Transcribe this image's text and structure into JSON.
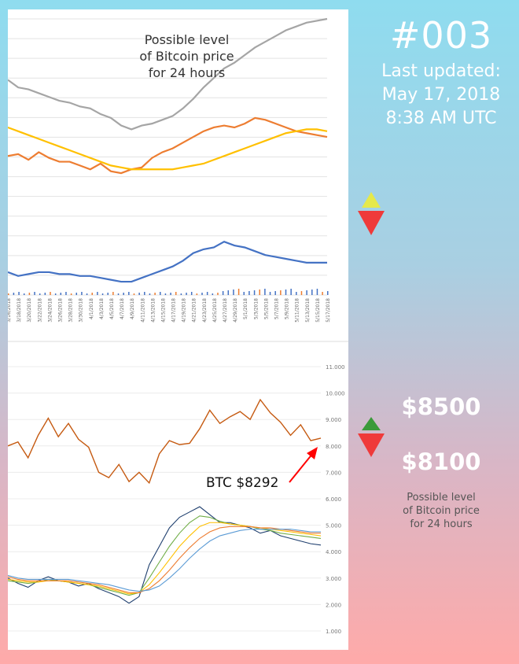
{
  "header": {
    "id_label": "#003",
    "updated_label": "Last updated:",
    "updated_date": "May 17, 2018",
    "updated_time": "8:38 AM UTC"
  },
  "top_chart": {
    "title_lines": [
      "Possible level",
      "of Bitcoin price",
      "for 24 hours"
    ]
  },
  "prediction": {
    "high": "$8500",
    "low": "$8100",
    "caption_lines": [
      "Possible level",
      "of Bitcoin price",
      "for 24 hours"
    ]
  },
  "annotation": {
    "label": "BTC $8292"
  },
  "icons": {
    "top_up": "triangle-up-icon",
    "top_down": "triangle-down-icon",
    "mid_up": "triangle-up-icon",
    "mid_down": "triangle-down-icon",
    "pointer": "arrow-icon"
  },
  "colors": {
    "grey_series": "#a5a5a5",
    "orange_series": "#ed7d31",
    "yellow_series": "#ffc000",
    "blue_series": "#4472c4",
    "btc_line": "#c55a11",
    "arrow": "#ff0000",
    "up_yellow": "#e5e94a",
    "up_green": "#3a9a3a",
    "down_red": "#ef3a3a"
  },
  "chart_data": [
    {
      "type": "line",
      "title": "Possible level of Bitcoin price for 24 hours",
      "x": [
        "3/16/2018",
        "3/18/2018",
        "3/20/2018",
        "3/22/2018",
        "3/24/2018",
        "3/26/2018",
        "3/28/2018",
        "3/30/2018",
        "4/1/2018",
        "4/3/2018",
        "4/5/2018",
        "4/7/2018",
        "4/9/2018",
        "4/11/2018",
        "4/13/2018",
        "4/15/2018",
        "4/17/2018",
        "4/19/2018",
        "4/21/2018",
        "4/23/2018",
        "4/25/2018",
        "4/27/2018",
        "4/29/2018",
        "5/1/2018",
        "5/3/2018",
        "5/5/2018",
        "5/7/2018",
        "5/9/2018",
        "5/11/2018",
        "5/13/2018",
        "5/15/2018",
        "5/17/2018"
      ],
      "ylim": [
        0,
        14.5
      ],
      "grid": true,
      "series": [
        {
          "values": [
            11.3,
            10.9,
            10.8,
            10.6,
            10.4,
            10.2,
            10.1,
            9.9,
            9.8,
            9.5,
            9.3,
            8.9,
            8.7,
            8.9,
            9.0,
            9.2,
            9.4,
            9.8,
            10.3,
            10.9,
            11.4,
            11.9,
            12.2,
            12.6,
            13.0,
            13.3,
            13.6,
            13.9,
            14.1,
            14.3,
            14.4,
            14.5
          ]
        },
        {
          "values": [
            7.3,
            7.4,
            7.1,
            7.5,
            7.2,
            7.0,
            7.0,
            6.8,
            6.6,
            6.9,
            6.5,
            6.4,
            6.6,
            6.7,
            7.2,
            7.5,
            7.7,
            8.0,
            8.3,
            8.6,
            8.8,
            8.9,
            8.8,
            9.0,
            9.3,
            9.2,
            9.0,
            8.8,
            8.6,
            8.5,
            8.4,
            8.3
          ]
        },
        {
          "values": [
            8.8,
            8.6,
            8.4,
            8.2,
            8.0,
            7.8,
            7.6,
            7.4,
            7.2,
            7.0,
            6.8,
            6.7,
            6.6,
            6.6,
            6.6,
            6.6,
            6.6,
            6.7,
            6.8,
            6.9,
            7.1,
            7.3,
            7.5,
            7.7,
            7.9,
            8.1,
            8.3,
            8.5,
            8.6,
            8.7,
            8.7,
            8.6
          ]
        },
        {
          "values": [
            1.2,
            1.0,
            1.1,
            1.2,
            1.2,
            1.1,
            1.1,
            1.0,
            1.0,
            0.9,
            0.8,
            0.7,
            0.7,
            0.9,
            1.1,
            1.3,
            1.5,
            1.8,
            2.2,
            2.4,
            2.5,
            2.8,
            2.6,
            2.5,
            2.3,
            2.1,
            2.0,
            1.9,
            1.8,
            1.7,
            1.7,
            1.7
          ]
        }
      ]
    },
    {
      "type": "line",
      "y_ticks": [
        "1.000",
        "2.000",
        "3.000",
        "4.000",
        "5.000",
        "6.000",
        "7.000",
        "8.000",
        "9.000",
        "10.000",
        "11.000"
      ],
      "ylim": [
        0,
        11500
      ],
      "grid": true,
      "series": [
        {
          "values": [
            8000,
            8150,
            7550,
            8400,
            9050,
            8350,
            8850,
            8250,
            7950,
            7000,
            6800,
            7300,
            6650,
            7000,
            6600,
            7700,
            8200,
            8050,
            8100,
            8650,
            9350,
            8850,
            9100,
            9300,
            9000,
            9750,
            9250,
            8900,
            8400,
            8800,
            8200,
            8292
          ]
        },
        {
          "values": [
            3000,
            2800,
            2650,
            2900,
            3050,
            2900,
            2850,
            2700,
            2800,
            2600,
            2450,
            2300,
            2050,
            2300,
            3500,
            4200,
            4900,
            5300,
            5500,
            5700,
            5400,
            5100,
            5100,
            5000,
            4900,
            4700,
            4800,
            4600,
            4500,
            4400,
            4300,
            4250
          ]
        },
        {
          "values": [
            2900,
            2850,
            2800,
            2850,
            2950,
            2900,
            2850,
            2800,
            2750,
            2650,
            2550,
            2450,
            2350,
            2450,
            3000,
            3600,
            4200,
            4700,
            5100,
            5350,
            5300,
            5150,
            5050,
            5000,
            4950,
            4850,
            4800,
            4700,
            4650,
            4600,
            4550,
            4500
          ]
        },
        {
          "values": [
            2950,
            2900,
            2850,
            2850,
            2900,
            2900,
            2850,
            2800,
            2750,
            2700,
            2600,
            2500,
            2400,
            2450,
            2750,
            3200,
            3700,
            4200,
            4600,
            4950,
            5100,
            5100,
            5050,
            5000,
            4950,
            4900,
            4850,
            4800,
            4750,
            4700,
            4650,
            4600
          ]
        },
        {
          "values": [
            3050,
            2950,
            2900,
            2900,
            2900,
            2900,
            2900,
            2850,
            2800,
            2750,
            2650,
            2550,
            2450,
            2450,
            2600,
            2900,
            3300,
            3750,
            4150,
            4500,
            4750,
            4900,
            4950,
            4950,
            4950,
            4900,
            4900,
            4850,
            4800,
            4750,
            4700,
            4700
          ]
        },
        {
          "values": [
            3100,
            3000,
            2950,
            2950,
            2950,
            2950,
            2950,
            2900,
            2850,
            2800,
            2750,
            2650,
            2550,
            2500,
            2550,
            2700,
            3000,
            3350,
            3750,
            4100,
            4400,
            4600,
            4700,
            4800,
            4850,
            4850,
            4850,
            4850,
            4850,
            4800,
            4750,
            4750
          ]
        }
      ]
    }
  ]
}
